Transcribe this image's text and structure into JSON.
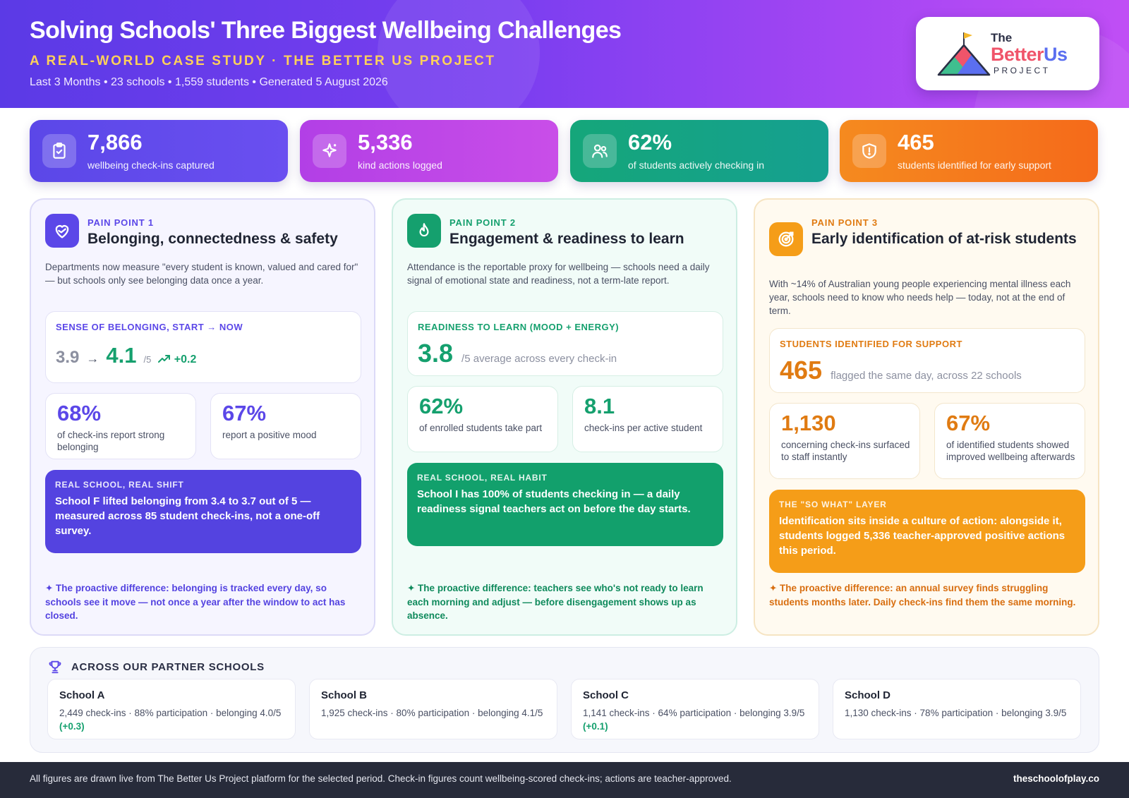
{
  "header": {
    "title": "Solving Schools' Three Biggest Wellbeing Challenges",
    "subtitle": "A REAL-WORLD CASE STUDY · THE BETTER US PROJECT",
    "meta": "Last 3 Months • 23 schools • 1,559 students • Generated 5 August 2026"
  },
  "logo": {
    "the": "The",
    "better": "Better",
    "us": "Us",
    "project": "PROJECT"
  },
  "stats": [
    {
      "value": "7,866",
      "label": "wellbeing check-ins captured",
      "icon": "clipboard-check-icon"
    },
    {
      "value": "5,336",
      "label": "kind actions logged",
      "icon": "sparkle-icon"
    },
    {
      "value": "62%",
      "label": "of students actively checking in",
      "icon": "users-icon"
    },
    {
      "value": "465",
      "label": "students identified for early support",
      "icon": "shield-alert-icon"
    }
  ],
  "pain_points": [
    {
      "tag": "PAIN POINT 1",
      "title": "Belonging, connectedness & safety",
      "icon": "heart-hands-icon",
      "description": "Departments now measure \"every student is known, valued and cared for\" — but schools only see belonging data once a year.",
      "main": {
        "label": "SENSE OF BELONGING, START → NOW",
        "from": "3.9",
        "arrow": "→",
        "to": "4.1",
        "of": "/5",
        "delta": "+0.2"
      },
      "minis": [
        {
          "value": "68%",
          "label": "of check-ins report strong belonging"
        },
        {
          "value": "67%",
          "label": "report a positive mood"
        }
      ],
      "callout": {
        "title": "REAL SCHOOL, REAL SHIFT",
        "body": "School F lifted belonging from 3.4 to 3.7 out of 5 — measured across 85 student check-ins, not a one-off survey."
      },
      "proactive": "✦ The proactive difference: belonging is tracked every day, so schools see it move — not once a year after the window to act has closed."
    },
    {
      "tag": "PAIN POINT 2",
      "title": "Engagement & readiness to learn",
      "icon": "flame-icon",
      "description": "Attendance is the reportable proxy for wellbeing — schools need a daily signal of emotional state and readiness, not a term-late report.",
      "main": {
        "label": "READINESS TO LEARN (MOOD + ENERGY)",
        "value": "3.8",
        "sub": "/5 average across every check-in"
      },
      "minis": [
        {
          "value": "62%",
          "label": "of enrolled students take part"
        },
        {
          "value": "8.1",
          "label": "check-ins per active student"
        }
      ],
      "callout": {
        "title": "REAL SCHOOL, REAL HABIT",
        "body": "School I has 100% of students checking in — a daily readiness signal teachers act on before the day starts."
      },
      "proactive": "✦ The proactive difference: teachers see who's not ready to learn each morning and adjust — before disengagement shows up as absence."
    },
    {
      "tag": "PAIN POINT 3",
      "title": "Early identification of at-risk students",
      "icon": "target-icon",
      "description": "With ~14% of Australian young people experiencing mental illness each year, schools need to know who needs help — today, not at the end of term.",
      "main": {
        "label": "STUDENTS IDENTIFIED FOR SUPPORT",
        "value": "465",
        "sub": "flagged the same day, across 22 schools"
      },
      "minis": [
        {
          "value": "1,130",
          "label": "concerning check-ins surfaced to staff instantly"
        },
        {
          "value": "67%",
          "label": "of identified students showed improved wellbeing afterwards"
        }
      ],
      "callout": {
        "title": "THE \"SO WHAT\" LAYER",
        "body": "Identification sits inside a culture of action: alongside it, students logged 5,336 teacher-approved positive actions this period."
      },
      "proactive": "✦ The proactive difference: an annual survey finds struggling students months later. Daily check-ins find them the same morning."
    }
  ],
  "partners": {
    "title": "ACROSS OUR PARTNER SCHOOLS",
    "icon": "trophy-icon",
    "schools": [
      {
        "name": "School A",
        "detail": "2,449 check-ins · 88% participation · belonging 4.0/5",
        "delta": "(+0.3)"
      },
      {
        "name": "School B",
        "detail": "1,925 check-ins · 80% participation · belonging 4.1/5",
        "delta": ""
      },
      {
        "name": "School C",
        "detail": "1,141 check-ins · 64% participation · belonging 3.9/5",
        "delta": "(+0.1)"
      },
      {
        "name": "School D",
        "detail": "1,130 check-ins · 78% participation · belonging 3.9/5",
        "delta": ""
      }
    ]
  },
  "footer": {
    "left": "All figures are drawn live from The Better Us Project platform for the selected period. Check-in figures count wellbeing-scored check-ins; actions are teacher-approved.",
    "right": "theschoolofplay.co"
  }
}
